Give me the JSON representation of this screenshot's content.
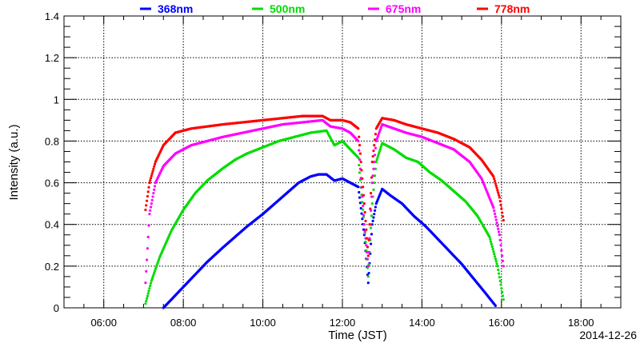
{
  "chart_data": {
    "type": "scatter",
    "xlabel": "Time (JST)",
    "ylabel": "Intensity (a.u.)",
    "date": "2014-12-26",
    "xlim": [
      5.0,
      19.0
    ],
    "ylim": [
      0,
      1.4
    ],
    "grid": true,
    "legend_position": "top",
    "x_ticks": [
      "06:00",
      "08:00",
      "10:00",
      "12:00",
      "14:00",
      "16:00",
      "18:00"
    ],
    "x_tick_values": [
      6,
      8,
      10,
      12,
      14,
      16,
      18
    ],
    "y_ticks": [
      "0",
      "0.2",
      "0.4",
      "0.6",
      "0.8",
      "1",
      "1.2",
      "1.4"
    ],
    "y_tick_values": [
      0,
      0.2,
      0.4,
      0.6,
      0.8,
      1.0,
      1.2,
      1.4
    ],
    "series": [
      {
        "name": "368nm",
        "color": "#0000ff",
        "points": [
          [
            7.5,
            0.0
          ],
          [
            7.8,
            0.06
          ],
          [
            8.0,
            0.1
          ],
          [
            8.3,
            0.16
          ],
          [
            8.6,
            0.22
          ],
          [
            9.0,
            0.29
          ],
          [
            9.3,
            0.34
          ],
          [
            9.6,
            0.39
          ],
          [
            10.0,
            0.45
          ],
          [
            10.3,
            0.5
          ],
          [
            10.6,
            0.55
          ],
          [
            10.9,
            0.6
          ],
          [
            11.2,
            0.63
          ],
          [
            11.4,
            0.64
          ],
          [
            11.6,
            0.64
          ],
          [
            11.8,
            0.61
          ],
          [
            12.0,
            0.62
          ],
          [
            12.2,
            0.6
          ],
          [
            12.4,
            0.58
          ],
          [
            12.55,
            0.35
          ],
          [
            12.65,
            0.12
          ],
          [
            12.75,
            0.4
          ],
          [
            12.85,
            0.5
          ],
          [
            13.0,
            0.57
          ],
          [
            13.2,
            0.54
          ],
          [
            13.5,
            0.5
          ],
          [
            13.8,
            0.44
          ],
          [
            14.1,
            0.39
          ],
          [
            14.4,
            0.33
          ],
          [
            14.7,
            0.27
          ],
          [
            15.0,
            0.21
          ],
          [
            15.3,
            0.14
          ],
          [
            15.6,
            0.07
          ],
          [
            15.85,
            0.01
          ]
        ]
      },
      {
        "name": "500nm",
        "color": "#00dd00",
        "points": [
          [
            7.05,
            0.02
          ],
          [
            7.2,
            0.13
          ],
          [
            7.4,
            0.24
          ],
          [
            7.7,
            0.37
          ],
          [
            8.0,
            0.47
          ],
          [
            8.3,
            0.55
          ],
          [
            8.6,
            0.61
          ],
          [
            9.0,
            0.67
          ],
          [
            9.3,
            0.71
          ],
          [
            9.6,
            0.74
          ],
          [
            10.0,
            0.77
          ],
          [
            10.4,
            0.8
          ],
          [
            10.8,
            0.82
          ],
          [
            11.2,
            0.84
          ],
          [
            11.6,
            0.85
          ],
          [
            11.8,
            0.78
          ],
          [
            12.0,
            0.8
          ],
          [
            12.2,
            0.76
          ],
          [
            12.4,
            0.72
          ],
          [
            12.55,
            0.4
          ],
          [
            12.65,
            0.15
          ],
          [
            12.75,
            0.5
          ],
          [
            12.85,
            0.7
          ],
          [
            13.0,
            0.79
          ],
          [
            13.3,
            0.76
          ],
          [
            13.6,
            0.72
          ],
          [
            13.9,
            0.7
          ],
          [
            14.2,
            0.65
          ],
          [
            14.5,
            0.61
          ],
          [
            14.8,
            0.56
          ],
          [
            15.1,
            0.51
          ],
          [
            15.4,
            0.44
          ],
          [
            15.7,
            0.34
          ],
          [
            15.9,
            0.2
          ],
          [
            16.05,
            0.04
          ]
        ]
      },
      {
        "name": "675nm",
        "color": "#ff00ff",
        "points": [
          [
            7.05,
            0.12
          ],
          [
            7.15,
            0.45
          ],
          [
            7.3,
            0.6
          ],
          [
            7.5,
            0.68
          ],
          [
            7.8,
            0.74
          ],
          [
            8.2,
            0.78
          ],
          [
            8.6,
            0.8
          ],
          [
            9.0,
            0.82
          ],
          [
            9.5,
            0.84
          ],
          [
            10.0,
            0.86
          ],
          [
            10.5,
            0.88
          ],
          [
            11.0,
            0.89
          ],
          [
            11.5,
            0.9
          ],
          [
            11.7,
            0.87
          ],
          [
            12.0,
            0.86
          ],
          [
            12.2,
            0.84
          ],
          [
            12.4,
            0.8
          ],
          [
            12.55,
            0.4
          ],
          [
            12.65,
            0.2
          ],
          [
            12.75,
            0.6
          ],
          [
            12.85,
            0.8
          ],
          [
            13.0,
            0.88
          ],
          [
            13.3,
            0.86
          ],
          [
            13.6,
            0.84
          ],
          [
            14.0,
            0.82
          ],
          [
            14.4,
            0.79
          ],
          [
            14.8,
            0.76
          ],
          [
            15.2,
            0.7
          ],
          [
            15.5,
            0.62
          ],
          [
            15.8,
            0.48
          ],
          [
            15.95,
            0.35
          ],
          [
            16.05,
            0.2
          ]
        ]
      },
      {
        "name": "778nm",
        "color": "#ff0000",
        "points": [
          [
            7.05,
            0.47
          ],
          [
            7.15,
            0.6
          ],
          [
            7.3,
            0.7
          ],
          [
            7.5,
            0.78
          ],
          [
            7.8,
            0.84
          ],
          [
            8.2,
            0.86
          ],
          [
            8.6,
            0.87
          ],
          [
            9.0,
            0.88
          ],
          [
            9.5,
            0.89
          ],
          [
            10.0,
            0.9
          ],
          [
            10.5,
            0.91
          ],
          [
            11.0,
            0.92
          ],
          [
            11.5,
            0.92
          ],
          [
            11.7,
            0.9
          ],
          [
            12.0,
            0.9
          ],
          [
            12.2,
            0.89
          ],
          [
            12.4,
            0.86
          ],
          [
            12.55,
            0.5
          ],
          [
            12.65,
            0.25
          ],
          [
            12.75,
            0.7
          ],
          [
            12.85,
            0.86
          ],
          [
            13.0,
            0.91
          ],
          [
            13.3,
            0.9
          ],
          [
            13.6,
            0.88
          ],
          [
            14.0,
            0.86
          ],
          [
            14.4,
            0.84
          ],
          [
            14.8,
            0.81
          ],
          [
            15.2,
            0.77
          ],
          [
            15.5,
            0.71
          ],
          [
            15.8,
            0.63
          ],
          [
            15.95,
            0.53
          ],
          [
            16.05,
            0.42
          ]
        ]
      }
    ]
  }
}
